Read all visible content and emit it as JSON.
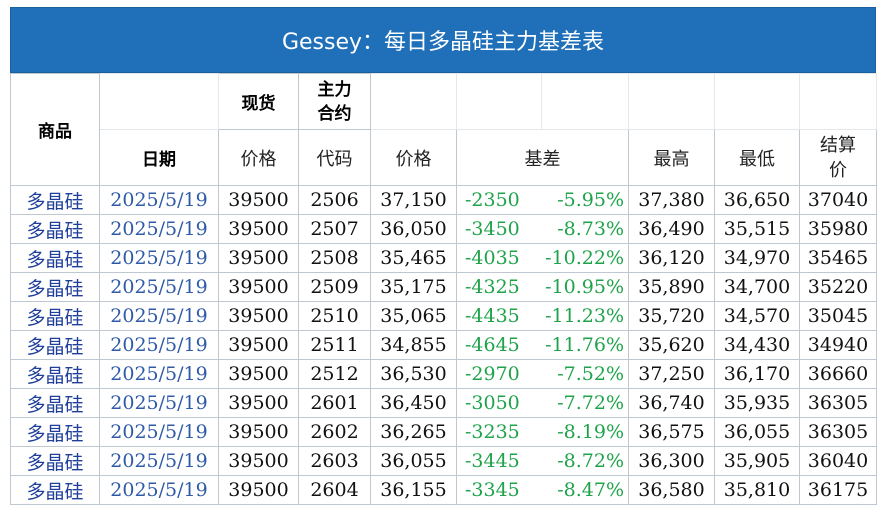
{
  "title": "Gessey：每日多晶硅主力基差表",
  "header": {
    "product": "商品",
    "spot": "现货",
    "main_contract": "主力\n合约",
    "date": "日期",
    "spot_price": "价格",
    "code": "代码",
    "price": "价格",
    "basis": "基差",
    "high": "最高",
    "low": "最低",
    "settle": "结算\n价"
  },
  "rows": [
    {
      "product": "多晶硅",
      "date": "2025/5/19",
      "spot": "39500",
      "code": "2506",
      "price": "37,150",
      "basis": "-2350",
      "basis_pct": "-5.95%",
      "high": "37,380",
      "low": "36,650",
      "settle": "37040"
    },
    {
      "product": "多晶硅",
      "date": "2025/5/19",
      "spot": "39500",
      "code": "2507",
      "price": "36,050",
      "basis": "-3450",
      "basis_pct": "-8.73%",
      "high": "36,490",
      "low": "35,515",
      "settle": "35980"
    },
    {
      "product": "多晶硅",
      "date": "2025/5/19",
      "spot": "39500",
      "code": "2508",
      "price": "35,465",
      "basis": "-4035",
      "basis_pct": "-10.22%",
      "high": "36,120",
      "low": "34,970",
      "settle": "35465"
    },
    {
      "product": "多晶硅",
      "date": "2025/5/19",
      "spot": "39500",
      "code": "2509",
      "price": "35,175",
      "basis": "-4325",
      "basis_pct": "-10.95%",
      "high": "35,890",
      "low": "34,700",
      "settle": "35220"
    },
    {
      "product": "多晶硅",
      "date": "2025/5/19",
      "spot": "39500",
      "code": "2510",
      "price": "35,065",
      "basis": "-4435",
      "basis_pct": "-11.23%",
      "high": "35,720",
      "low": "34,570",
      "settle": "35045"
    },
    {
      "product": "多晶硅",
      "date": "2025/5/19",
      "spot": "39500",
      "code": "2511",
      "price": "34,855",
      "basis": "-4645",
      "basis_pct": "-11.76%",
      "high": "35,620",
      "low": "34,430",
      "settle": "34940"
    },
    {
      "product": "多晶硅",
      "date": "2025/5/19",
      "spot": "39500",
      "code": "2512",
      "price": "36,530",
      "basis": "-2970",
      "basis_pct": "-7.52%",
      "high": "37,250",
      "low": "36,170",
      "settle": "36660"
    },
    {
      "product": "多晶硅",
      "date": "2025/5/19",
      "spot": "39500",
      "code": "2601",
      "price": "36,450",
      "basis": "-3050",
      "basis_pct": "-7.72%",
      "high": "36,740",
      "low": "35,935",
      "settle": "36305"
    },
    {
      "product": "多晶硅",
      "date": "2025/5/19",
      "spot": "39500",
      "code": "2602",
      "price": "36,265",
      "basis": "-3235",
      "basis_pct": "-8.19%",
      "high": "36,575",
      "low": "36,055",
      "settle": "36305"
    },
    {
      "product": "多晶硅",
      "date": "2025/5/19",
      "spot": "39500",
      "code": "2603",
      "price": "36,055",
      "basis": "-3445",
      "basis_pct": "-8.72%",
      "high": "36,300",
      "low": "35,905",
      "settle": "36040"
    },
    {
      "product": "多晶硅",
      "date": "2025/5/19",
      "spot": "39500",
      "code": "2604",
      "price": "36,155",
      "basis": "-3345",
      "basis_pct": "-8.47%",
      "high": "36,580",
      "low": "35,810",
      "settle": "36175"
    }
  ],
  "colors": {
    "title_bg": "#1f6fb9",
    "title_text": "#ffffff",
    "product_text": "#1f3f9a",
    "date_text": "#2f5aa8",
    "basis_text": "#1ea34a"
  }
}
